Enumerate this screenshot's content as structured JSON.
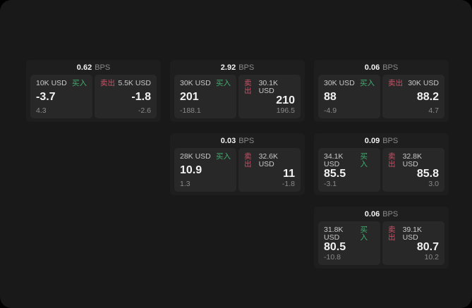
{
  "labels": {
    "buy": "买入",
    "sell": "卖出",
    "bps_unit": "BPS"
  },
  "colors": {
    "app_bg": "#191919",
    "card_bg": "#1e1e1e",
    "panel_bg": "#282828",
    "buy_green": "#3fae6f",
    "sell_red": "#cc4f66",
    "big_value": "#f2f2f2",
    "notional": "#c9c9c9",
    "muted": "#8a8a8a"
  },
  "cards": [
    {
      "grid": {
        "row": 1,
        "col": 1
      },
      "bps": "0.62",
      "buy": {
        "notional": "10K USD",
        "value": "-3.7",
        "sub": "4.3"
      },
      "sell": {
        "notional": "5.5K USD",
        "value": "-1.8",
        "sub": "-2.6"
      }
    },
    {
      "grid": {
        "row": 1,
        "col": 2
      },
      "bps": "2.92",
      "buy": {
        "notional": "30K USD",
        "value": "201",
        "sub": "-188.1"
      },
      "sell": {
        "notional": "30.1K USD",
        "value": "210",
        "sub": "196.5"
      }
    },
    {
      "grid": {
        "row": 1,
        "col": 3
      },
      "bps": "0.06",
      "buy": {
        "notional": "30K USD",
        "value": "88",
        "sub": "-4.9"
      },
      "sell": {
        "notional": "30K USD",
        "value": "88.2",
        "sub": "4.7"
      }
    },
    {
      "grid": {
        "row": 2,
        "col": 2
      },
      "bps": "0.03",
      "buy": {
        "notional": "28K USD",
        "value": "10.9",
        "sub": "1.3"
      },
      "sell": {
        "notional": "32.6K USD",
        "value": "11",
        "sub": "-1.8"
      }
    },
    {
      "grid": {
        "row": 2,
        "col": 3
      },
      "bps": "0.09",
      "buy": {
        "notional": "34.1K USD",
        "value": "85.5",
        "sub": "-3.1"
      },
      "sell": {
        "notional": "32.8K USD",
        "value": "85.8",
        "sub": "3.0"
      }
    },
    {
      "grid": {
        "row": 3,
        "col": 3
      },
      "bps": "0.06",
      "buy": {
        "notional": "31.8K USD",
        "value": "80.5",
        "sub": "-10.8"
      },
      "sell": {
        "notional": "39.1K USD",
        "value": "80.7",
        "sub": "10.2"
      }
    }
  ]
}
